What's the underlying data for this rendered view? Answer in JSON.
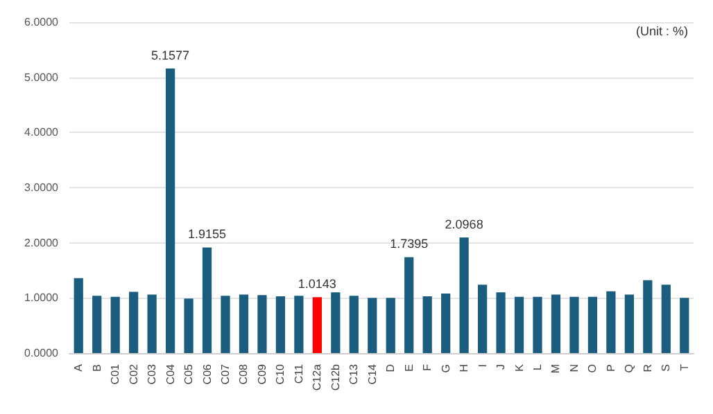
{
  "chart_data": {
    "type": "bar",
    "annotations": [
      "(Unit : %)"
    ],
    "categories": [
      "A",
      "B",
      "C01",
      "C02",
      "C03",
      "C04",
      "C05",
      "C06",
      "C07",
      "C08",
      "C09",
      "C10",
      "C11",
      "C12a",
      "C12b",
      "C13",
      "C14",
      "D",
      "E",
      "F",
      "G",
      "H",
      "I",
      "J",
      "K",
      "L",
      "M",
      "N",
      "O",
      "P",
      "Q",
      "R",
      "S",
      "T"
    ],
    "values": [
      1.36,
      1.04,
      1.02,
      1.11,
      1.06,
      5.1577,
      0.99,
      1.9155,
      1.04,
      1.06,
      1.05,
      1.03,
      1.04,
      1.0143,
      1.1,
      1.04,
      1.0,
      1.0,
      1.7395,
      1.03,
      1.08,
      2.0968,
      1.24,
      1.1,
      1.02,
      1.02,
      1.06,
      1.02,
      1.02,
      1.12,
      1.06,
      1.32,
      1.24,
      1.0
    ],
    "value_labels": [
      null,
      null,
      null,
      null,
      null,
      "5.1577",
      null,
      "1.9155",
      null,
      null,
      null,
      null,
      null,
      "1.0143",
      null,
      null,
      null,
      null,
      "1.7395",
      null,
      null,
      "2.0968",
      null,
      null,
      null,
      null,
      null,
      null,
      null,
      null,
      null,
      null,
      null,
      null
    ],
    "colors": [
      "#1b5d7e",
      "#1b5d7e",
      "#1b5d7e",
      "#1b5d7e",
      "#1b5d7e",
      "#1b5d7e",
      "#1b5d7e",
      "#1b5d7e",
      "#1b5d7e",
      "#1b5d7e",
      "#1b5d7e",
      "#1b5d7e",
      "#1b5d7e",
      "#ff0000",
      "#1b5d7e",
      "#1b5d7e",
      "#1b5d7e",
      "#1b5d7e",
      "#1b5d7e",
      "#1b5d7e",
      "#1b5d7e",
      "#1b5d7e",
      "#1b5d7e",
      "#1b5d7e",
      "#1b5d7e",
      "#1b5d7e",
      "#1b5d7e",
      "#1b5d7e",
      "#1b5d7e",
      "#1b5d7e",
      "#1b5d7e",
      "#1b5d7e",
      "#1b5d7e",
      "#1b5d7e"
    ],
    "ylim": [
      0,
      6
    ],
    "yticks": [
      {
        "value": 0,
        "label": "0.0000"
      },
      {
        "value": 1,
        "label": "1.0000"
      },
      {
        "value": 2,
        "label": "2.0000"
      },
      {
        "value": 3,
        "label": "3.0000"
      },
      {
        "value": 4,
        "label": "4.0000"
      },
      {
        "value": 5,
        "label": "5.0000"
      },
      {
        "value": 6,
        "label": "6.0000"
      }
    ],
    "grid": "y"
  }
}
